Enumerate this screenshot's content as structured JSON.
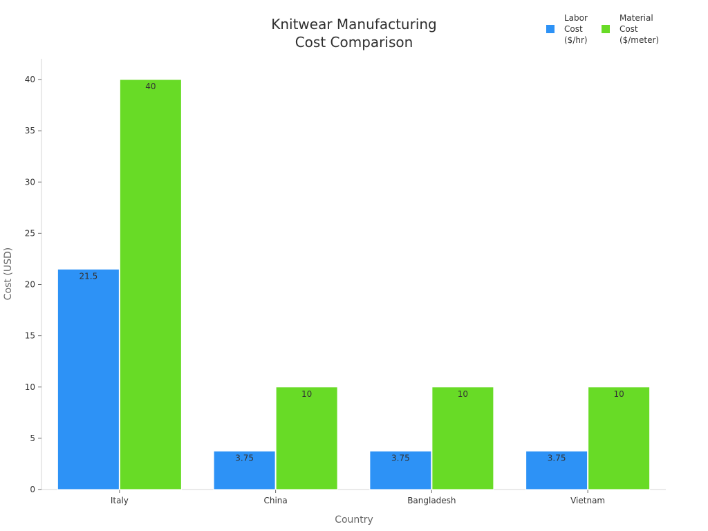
{
  "chart_data": {
    "type": "bar",
    "title_lines": [
      "Knitwear Manufacturing",
      "Cost Comparison"
    ],
    "categories": [
      "Italy",
      "China",
      "Bangladesh",
      "Vietnam"
    ],
    "series": [
      {
        "name": "Labor\nCost\n($/hr)",
        "color": "#2d92f6",
        "values": [
          21.5,
          3.75,
          3.75,
          3.75
        ],
        "labels": [
          "21.5",
          "3.75",
          "3.75",
          "3.75"
        ]
      },
      {
        "name": "Material\nCost\n($/meter)",
        "color": "#68db26",
        "values": [
          40,
          10,
          10,
          10
        ],
        "labels": [
          "40",
          "10",
          "10",
          "10"
        ]
      }
    ],
    "xlabel": "Country",
    "ylabel": "Cost (USD)",
    "ylim": [
      0,
      42
    ],
    "yticks": [
      0,
      5,
      10,
      15,
      20,
      25,
      30,
      35,
      40
    ],
    "grid": false,
    "legend_position": "top-right"
  }
}
